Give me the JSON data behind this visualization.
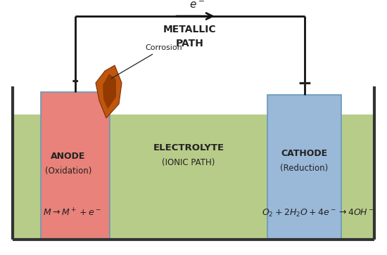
{
  "bg_color": "#ffffff",
  "electrolyte_color": "#b8cc8a",
  "anode_color": "#e8827a",
  "cathode_color": "#9ab8d8",
  "wire_color": "#111111",
  "tank_color": "#333333",
  "text_color": "#222222",
  "metallic_path_text": "METALLIC\nPATH",
  "electron_label": "$e^-$",
  "anode_label_bold": "ANODE",
  "anode_label_sub": "(Oxidation)",
  "cathode_label_bold": "CATHODE",
  "cathode_label_sub": "(Reduction)",
  "electrolyte_label_bold": "ELECTROLYTE",
  "electrolyte_label_sub": "(IONIC PATH)",
  "corrosion_label": "Corrosion",
  "minus_sign": "-",
  "plus_sign": "+",
  "anode_eq": "$M \\rightarrow M^+ + e^-$",
  "cathode_eq": "$O_2 + 2H_2O + 4e^- \\rightarrow 4OH^-$"
}
